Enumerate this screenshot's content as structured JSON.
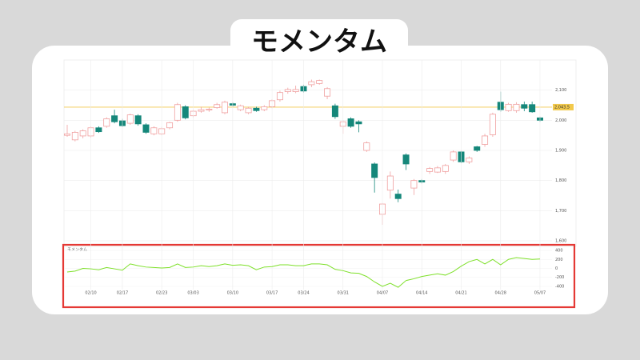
{
  "chart_data": [
    {
      "type": "candlestick",
      "title": "モメンタム",
      "open": [
        1950,
        1935,
        1948,
        1948,
        1975,
        1980,
        2015,
        1998,
        1990,
        2015,
        1985,
        1955,
        1955,
        1975,
        2000,
        2045,
        2015,
        2030,
        2035,
        2042,
        2025,
        2055,
        2035,
        2025,
        2040,
        2035,
        2045,
        2068,
        2095,
        2095,
        2112,
        2118,
        2122,
        2080,
        2048,
        1980,
        2005,
        1995,
        1900,
        1855,
        1688,
        1768,
        1755,
        1885,
        1775,
        1800,
        1830,
        1828,
        1830,
        1868,
        1895,
        1862,
        1912,
        1920,
        1952,
        2060,
        2032,
        2032,
        2052,
        2052,
        2008
      ],
      "high": [
        1985,
        1965,
        1970,
        1980,
        1980,
        2010,
        2035,
        2005,
        2022,
        2020,
        1990,
        1980,
        1978,
        1995,
        2058,
        2050,
        2035,
        2045,
        2042,
        2058,
        2065,
        2060,
        2052,
        2045,
        2045,
        2050,
        2070,
        2098,
        2108,
        2115,
        2118,
        2135,
        2135,
        2110,
        2055,
        2000,
        2010,
        2000,
        1930,
        1860,
        1725,
        1830,
        1770,
        1890,
        1805,
        1805,
        1845,
        1848,
        1855,
        1900,
        1898,
        1880,
        1915,
        1955,
        2025,
        2095,
        2058,
        2060,
        2062,
        2062,
        2012
      ],
      "low": [
        1945,
        1930,
        1940,
        1942,
        1958,
        1975,
        1990,
        1978,
        1985,
        1982,
        1955,
        1950,
        1950,
        1970,
        1995,
        2003,
        2010,
        2025,
        2028,
        2038,
        2020,
        2045,
        2030,
        2020,
        2028,
        2030,
        2040,
        2062,
        2088,
        2090,
        2092,
        2110,
        2118,
        2070,
        2005,
        1955,
        1975,
        1960,
        1895,
        1760,
        1653,
        1740,
        1728,
        1835,
        1752,
        1790,
        1822,
        1825,
        1822,
        1862,
        1858,
        1855,
        1895,
        1912,
        1945,
        2028,
        2028,
        2025,
        2030,
        2025,
        1995
      ],
      "close": [
        1955,
        1960,
        1965,
        1975,
        1962,
        2005,
        1995,
        1982,
        2018,
        1988,
        1960,
        1975,
        1972,
        1992,
        2052,
        2008,
        2030,
        2035,
        2037,
        2052,
        2060,
        2050,
        2048,
        2040,
        2032,
        2045,
        2065,
        2092,
        2102,
        2102,
        2097,
        2128,
        2132,
        2105,
        2012,
        1995,
        1980,
        1988,
        1925,
        1810,
        1722,
        1815,
        1740,
        1855,
        1800,
        1795,
        1840,
        1842,
        1850,
        1895,
        1862,
        1875,
        1900,
        1948,
        2020,
        2035,
        2053,
        2053,
        2040,
        2028,
        2000
      ],
      "up_color": "#f0a0a0",
      "down_color": "#15877a",
      "hline": 2043.5,
      "hline_label": "2,043.5",
      "hline_color": "#f2c94c",
      "ylim": [
        1600,
        2200
      ],
      "yticks": [
        {
          "value": 1600,
          "label": "1,600"
        },
        {
          "value": 1700,
          "label": "1,700"
        },
        {
          "value": 1800,
          "label": "1,800"
        },
        {
          "value": 1900,
          "label": "1,900"
        },
        {
          "value": 2000,
          "label": "2,000"
        },
        {
          "value": 2100,
          "label": "2,100"
        }
      ],
      "grid": true
    },
    {
      "type": "line",
      "title": "モメンタム",
      "categories": [
        null,
        null,
        null,
        "02/10",
        null,
        null,
        null,
        "02/17",
        null,
        null,
        null,
        null,
        "02/23",
        null,
        null,
        null,
        "03/03",
        null,
        null,
        null,
        null,
        "03/10",
        null,
        null,
        null,
        null,
        "03/17",
        null,
        null,
        null,
        "03/24",
        null,
        null,
        null,
        null,
        "03/31",
        null,
        null,
        null,
        null,
        "04/07",
        null,
        null,
        null,
        null,
        "04/14",
        null,
        null,
        null,
        null,
        "04/21",
        null,
        null,
        null,
        null,
        "04/28",
        null,
        null,
        null,
        null,
        "05/07"
      ],
      "values": [
        -80,
        -60,
        0,
        -10,
        -30,
        20,
        -10,
        -40,
        100,
        60,
        30,
        20,
        10,
        20,
        100,
        20,
        30,
        60,
        40,
        60,
        100,
        70,
        80,
        60,
        -30,
        30,
        40,
        80,
        80,
        60,
        60,
        100,
        100,
        80,
        -20,
        -50,
        -100,
        -110,
        -180,
        -300,
        -400,
        -330,
        -420,
        -270,
        -230,
        -180,
        -150,
        -120,
        -150,
        -70,
        50,
        150,
        200,
        100,
        200,
        80,
        200,
        240,
        220,
        200,
        210
      ],
      "color": "#7ee02a",
      "ylim": [
        -500,
        500
      ],
      "yticks": [
        -400,
        -200,
        0,
        200,
        400
      ],
      "grid": true
    }
  ]
}
